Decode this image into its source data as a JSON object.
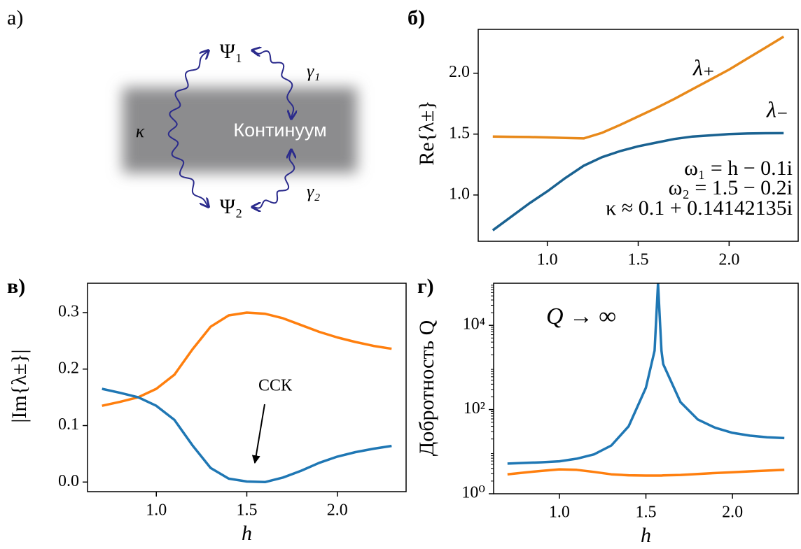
{
  "diagram": {
    "panel_label": "а)",
    "nodes": {
      "psi1": "Ψ₁",
      "psi2": "Ψ₂",
      "continuum": "Континуум"
    },
    "couplings": {
      "gamma1": "γ₁",
      "gamma2": "γ₂",
      "kappa": "κ"
    }
  },
  "chart_data": [
    {
      "type": "line",
      "panel_label": "б)",
      "y_label": "Re{λ±}",
      "x": [
        0.7,
        0.8,
        0.9,
        1.0,
        1.1,
        1.2,
        1.3,
        1.4,
        1.5,
        1.6,
        1.7,
        1.8,
        1.9,
        2.0,
        2.1,
        2.2,
        2.3
      ],
      "series": [
        {
          "name": "λ₊",
          "color": "#e8891a",
          "values": [
            1.48,
            1.478,
            1.476,
            1.473,
            1.469,
            1.465,
            1.51,
            1.575,
            1.645,
            1.715,
            1.79,
            1.87,
            1.95,
            2.03,
            2.12,
            2.21,
            2.3
          ]
        },
        {
          "name": "λ₋",
          "color": "#1a6291",
          "values": [
            0.71,
            0.82,
            0.93,
            1.03,
            1.14,
            1.24,
            1.31,
            1.36,
            1.4,
            1.43,
            1.46,
            1.48,
            1.49,
            1.5,
            1.505,
            1.507,
            1.508
          ]
        }
      ],
      "xlim": [
        0.62,
        2.38
      ],
      "ylim": [
        0.62,
        2.36
      ],
      "xticks": [
        {
          "value": 1,
          "label": "1.0"
        },
        {
          "value": 1.5,
          "label": "1.5"
        },
        {
          "value": 2,
          "label": "2.0"
        }
      ],
      "yticks": [
        {
          "value": 1,
          "label": "1.0"
        },
        {
          "value": 1.5,
          "label": "1.5"
        },
        {
          "value": 2,
          "label": "2.0"
        }
      ],
      "annotations": [
        "ω₁ = h − 0.1i",
        "ω₂ = 1.5 − 0.2i",
        "κ ≈ 0.1 + 0.14142135i"
      ]
    },
    {
      "type": "line",
      "panel_label": "в)",
      "y_label": "|Im{λ±}|",
      "x_label": "h",
      "x": [
        0.7,
        0.8,
        0.9,
        1.0,
        1.1,
        1.2,
        1.3,
        1.4,
        1.5,
        1.6,
        1.7,
        1.8,
        1.9,
        2.0,
        2.1,
        2.2,
        2.3
      ],
      "series": [
        {
          "color": "#ff7f0e",
          "values": [
            0.135,
            0.142,
            0.15,
            0.165,
            0.19,
            0.235,
            0.275,
            0.295,
            0.3,
            0.298,
            0.29,
            0.278,
            0.266,
            0.256,
            0.248,
            0.241,
            0.236
          ]
        },
        {
          "color": "#1f77b4",
          "values": [
            0.165,
            0.158,
            0.15,
            0.135,
            0.11,
            0.065,
            0.025,
            0.006,
            0.001,
            0.0,
            0.008,
            0.02,
            0.034,
            0.045,
            0.053,
            0.059,
            0.064
          ]
        }
      ],
      "xlim": [
        0.62,
        2.38
      ],
      "ylim": [
        -0.017,
        0.352
      ],
      "xticks": [
        {
          "value": 1,
          "label": "1.0"
        },
        {
          "value": 1.5,
          "label": "1.5"
        },
        {
          "value": 2,
          "label": "2.0"
        }
      ],
      "yticks": [
        {
          "value": 0,
          "label": "0.0"
        },
        0.1,
        0.2,
        0.3
      ],
      "annotations": [
        "ССК"
      ]
    },
    {
      "type": "line",
      "panel_label": "г)",
      "y_label": "Добротность Q",
      "x_label": "h",
      "log_y": true,
      "x": [
        0.7,
        0.8,
        0.9,
        1.0,
        1.1,
        1.2,
        1.3,
        1.4,
        1.5,
        1.55,
        1.57,
        1.59,
        1.6,
        1.7,
        1.8,
        1.9,
        2.0,
        2.1,
        2.2,
        2.3
      ],
      "series": [
        {
          "color": "#1f77b4",
          "values": [
            5.2,
            5.4,
            5.6,
            5.9,
            6.8,
            8.6,
            14,
            40,
            330,
            2500,
            100000,
            2500,
            1200,
            150,
            58,
            37,
            28,
            24,
            22,
            21
          ]
        },
        {
          "color": "#ff7f0e",
          "values": [
            2.9,
            3.2,
            3.5,
            3.8,
            3.7,
            3.3,
            2.9,
            2.75,
            2.7,
            2.7,
            2.7,
            2.7,
            2.72,
            2.8,
            2.95,
            3.1,
            3.25,
            3.4,
            3.55,
            3.7
          ]
        }
      ],
      "xlim": [
        0.62,
        2.38
      ],
      "ylim": [
        1,
        100000
      ],
      "xticks": [
        {
          "value": 1,
          "label": "1.0"
        },
        {
          "value": 1.5,
          "label": "1.5"
        },
        {
          "value": 2,
          "label": "2.0"
        }
      ],
      "yticks": [
        {
          "value": 1,
          "label": "10⁰"
        },
        {
          "value": 100,
          "label": "10²"
        },
        {
          "value": 10000,
          "label": "10⁴"
        }
      ],
      "annotations": [
        "Q → ∞"
      ]
    }
  ]
}
